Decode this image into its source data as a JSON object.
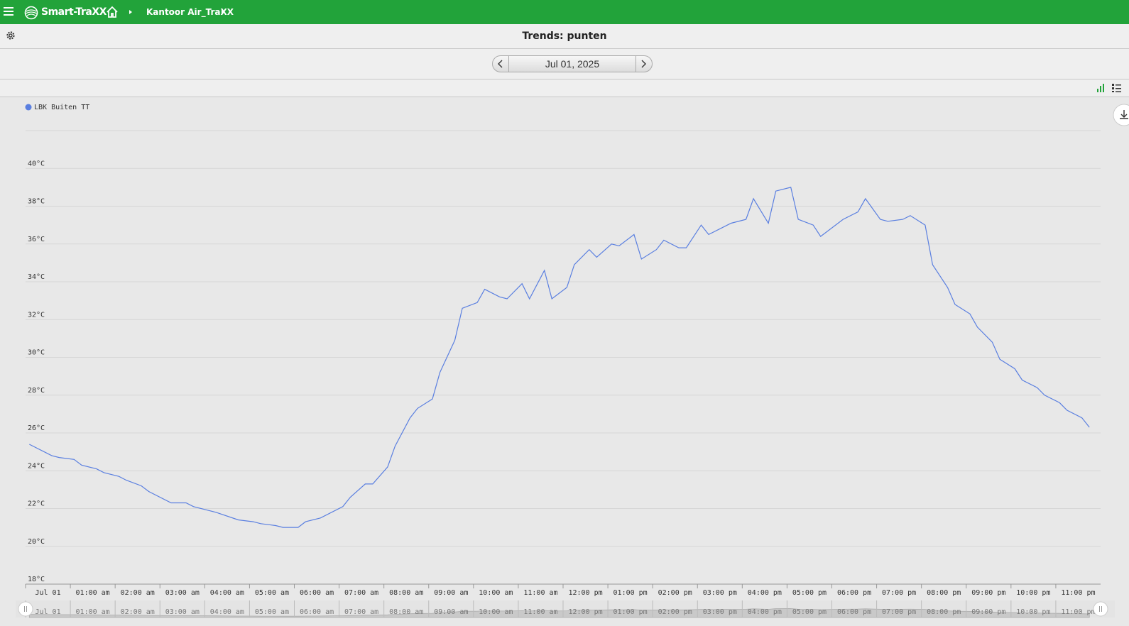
{
  "header": {
    "logo": "Smart-TraXX",
    "breadcrumb": "Kantoor Air_TraXX"
  },
  "page_title": "Trends: punten",
  "date": "Jul 01, 2025",
  "chart_data": {
    "type": "line",
    "x": [
      "00:05",
      "00:35",
      "00:45",
      "01:05",
      "01:15",
      "01:35",
      "01:45",
      "02:05",
      "02:15",
      "02:35",
      "02:45",
      "03:15",
      "03:35",
      "03:45",
      "04:15",
      "04:45",
      "05:05",
      "05:15",
      "05:35",
      "05:45",
      "06:05",
      "06:15",
      "06:35",
      "07:05",
      "07:15",
      "07:35",
      "07:45",
      "08:05",
      "08:15",
      "08:35",
      "08:45",
      "09:05",
      "09:15",
      "09:35",
      "09:45",
      "10:05",
      "10:15",
      "10:35",
      "10:45",
      "11:05",
      "11:15",
      "11:35",
      "11:45",
      "12:05",
      "12:15",
      "12:35",
      "12:45",
      "13:05",
      "13:15",
      "13:35",
      "13:45",
      "14:05",
      "14:15",
      "14:35",
      "14:45",
      "15:05",
      "15:15",
      "15:45",
      "16:05",
      "16:15",
      "16:35",
      "16:45",
      "17:05",
      "17:15",
      "17:35",
      "17:45",
      "18:15",
      "18:35",
      "18:45",
      "19:05",
      "19:15",
      "19:35",
      "19:45",
      "20:05",
      "20:15",
      "20:35",
      "20:45",
      "21:05",
      "21:15",
      "21:35",
      "21:45",
      "22:05",
      "22:15",
      "22:35",
      "22:45",
      "23:05",
      "23:15",
      "23:35",
      "23:45"
    ],
    "series": [
      {
        "name": "LBK Buiten TT",
        "color": "#5a7fe0",
        "values": [
          25.4,
          24.8,
          24.7,
          24.6,
          24.3,
          24.1,
          23.9,
          23.7,
          23.5,
          23.2,
          22.9,
          22.3,
          22.3,
          22.1,
          21.8,
          21.4,
          21.3,
          21.2,
          21.1,
          21.0,
          21.0,
          21.3,
          21.5,
          22.1,
          22.6,
          23.3,
          23.3,
          24.2,
          25.3,
          26.8,
          27.3,
          27.8,
          29.2,
          30.9,
          32.6,
          32.9,
          33.6,
          33.2,
          33.1,
          33.9,
          33.1,
          34.6,
          33.1,
          33.7,
          34.9,
          35.7,
          35.3,
          36.0,
          35.9,
          36.5,
          35.2,
          35.7,
          36.2,
          35.8,
          35.8,
          37.0,
          36.5,
          37.1,
          37.3,
          38.4,
          37.1,
          38.8,
          39.0,
          37.3,
          37.0,
          36.4,
          37.3,
          37.7,
          38.4,
          37.3,
          37.2,
          37.3,
          37.5,
          37.0,
          34.9,
          33.7,
          32.8,
          32.3,
          31.6,
          30.8,
          29.9,
          29.4,
          28.8,
          28.4,
          28.0,
          27.6,
          27.2,
          26.8,
          26.3
        ]
      }
    ],
    "xlim": [
      "00:00",
      "24:00"
    ],
    "xticks": [
      {
        "value": "00:00",
        "label": "Jul 01"
      },
      {
        "value": "01:00",
        "label": "01:00 am"
      },
      {
        "value": "02:00",
        "label": "02:00 am"
      },
      {
        "value": "03:00",
        "label": "03:00 am"
      },
      {
        "value": "04:00",
        "label": "04:00 am"
      },
      {
        "value": "05:00",
        "label": "05:00 am"
      },
      {
        "value": "06:00",
        "label": "06:00 am"
      },
      {
        "value": "07:00",
        "label": "07:00 am"
      },
      {
        "value": "08:00",
        "label": "08:00 am"
      },
      {
        "value": "09:00",
        "label": "09:00 am"
      },
      {
        "value": "10:00",
        "label": "10:00 am"
      },
      {
        "value": "11:00",
        "label": "11:00 am"
      },
      {
        "value": "12:00",
        "label": "12:00 pm"
      },
      {
        "value": "13:00",
        "label": "01:00 pm"
      },
      {
        "value": "14:00",
        "label": "02:00 pm"
      },
      {
        "value": "15:00",
        "label": "03:00 pm"
      },
      {
        "value": "16:00",
        "label": "04:00 pm"
      },
      {
        "value": "17:00",
        "label": "05:00 pm"
      },
      {
        "value": "18:00",
        "label": "06:00 pm"
      },
      {
        "value": "19:00",
        "label": "07:00 pm"
      },
      {
        "value": "20:00",
        "label": "08:00 pm"
      },
      {
        "value": "21:00",
        "label": "09:00 pm"
      },
      {
        "value": "22:00",
        "label": "10:00 pm"
      },
      {
        "value": "23:00",
        "label": "11:00 pm"
      }
    ],
    "ylim": [
      18,
      42
    ],
    "yticks": [
      {
        "value": 18,
        "label": "18°C"
      },
      {
        "value": 20,
        "label": "20°C"
      },
      {
        "value": 22,
        "label": "22°C"
      },
      {
        "value": 24,
        "label": "24°C"
      },
      {
        "value": 26,
        "label": "26°C"
      },
      {
        "value": 28,
        "label": "28°C"
      },
      {
        "value": 30,
        "label": "30°C"
      },
      {
        "value": 32,
        "label": "32°C"
      },
      {
        "value": 34,
        "label": "34°C"
      },
      {
        "value": 36,
        "label": "36°C"
      },
      {
        "value": 38,
        "label": "38°C"
      },
      {
        "value": 40,
        "label": "40°C"
      }
    ],
    "grid": true
  }
}
